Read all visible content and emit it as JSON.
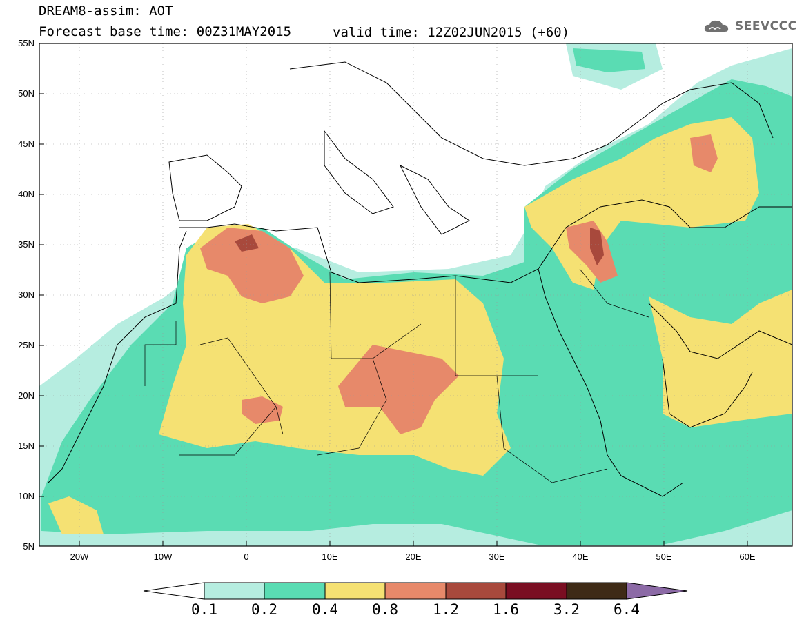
{
  "header": {
    "line1": "DREAM8-assim: AOT",
    "line2": "Forecast base time: 00Z31MAY2015",
    "valid": "valid time: 12Z02JUN2015 (+60)"
  },
  "logo": {
    "text": "SEEVCCC",
    "icon": "cloud-icon"
  },
  "axes": {
    "lat_labels": [
      "55N",
      "50N",
      "45N",
      "40N",
      "35N",
      "30N",
      "25N",
      "20N",
      "15N",
      "10N",
      "5N"
    ],
    "lon_labels": [
      "20W",
      "10W",
      "0",
      "10E",
      "20E",
      "30E",
      "40E",
      "50E",
      "60E"
    ]
  },
  "colorbar": {
    "labels": [
      "0.1",
      "0.2",
      "0.4",
      "0.8",
      "1.2",
      "1.6",
      "3.2",
      "6.4"
    ],
    "colors": [
      "#ffffff",
      "#b6ede0",
      "#5adcb3",
      "#f5e173",
      "#e7896a",
      "#a8493c",
      "#7a0e22",
      "#3e2a16",
      "#8c6aa6"
    ]
  }
}
